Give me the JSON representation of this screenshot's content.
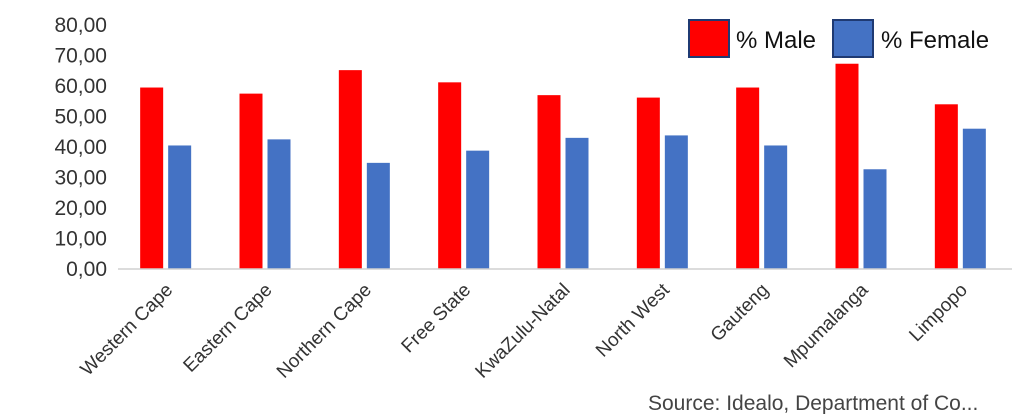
{
  "chart_data": {
    "type": "bar",
    "categories": [
      "Western Cape",
      "Eastern Cape",
      "Northern Cape",
      "Free State",
      "KwaZulu-Natal",
      "North West",
      "Gauteng",
      "Mpumalanga",
      "Limpopo"
    ],
    "series": [
      {
        "name": "% Male",
        "color": "#ff0000",
        "values": [
          59.5,
          57.5,
          65.2,
          61.2,
          57.0,
          56.2,
          59.5,
          67.3,
          54.0
        ]
      },
      {
        "name": "% Female",
        "color": "#4472c4",
        "values": [
          40.5,
          42.5,
          34.8,
          38.8,
          43.0,
          43.8,
          40.5,
          32.7,
          46.0
        ]
      }
    ],
    "yticks": [
      "0,00",
      "10,00",
      "20,00",
      "30,00",
      "40,00",
      "50,00",
      "60,00",
      "70,00",
      "80,00"
    ],
    "ylim": [
      0,
      80
    ],
    "grid": false,
    "legend_placement": "top-right",
    "source_note": "Source: Idealo, Department of Co..."
  }
}
